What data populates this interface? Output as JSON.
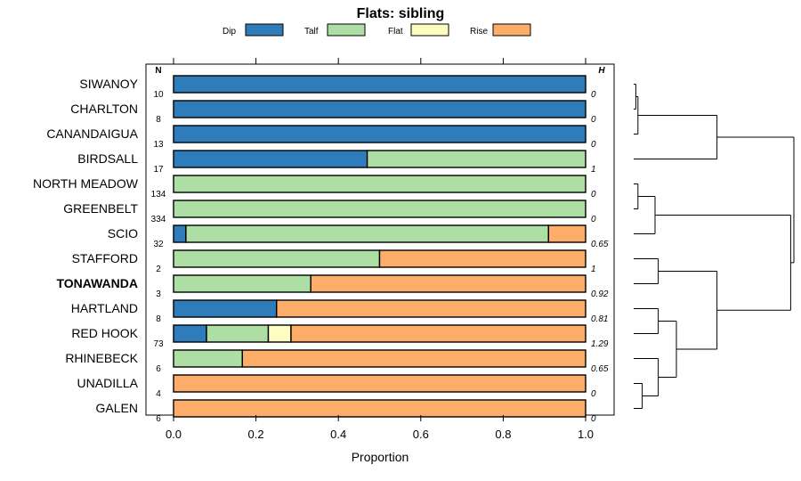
{
  "chart_data": {
    "type": "bar",
    "orientation": "horizontal",
    "stacked": true,
    "title": "Flats: sibling",
    "xlabel": "Proportion",
    "xlim": [
      0,
      1
    ],
    "x_ticks": [
      "0.0",
      "0.2",
      "0.4",
      "0.6",
      "0.8",
      "1.0"
    ],
    "n_header": "N",
    "h_header": "H",
    "highlighted_category": "TONAWANDA",
    "legend": [
      {
        "name": "Dip",
        "color": "#2e7dba"
      },
      {
        "name": "Talf",
        "color": "#addea3"
      },
      {
        "name": "Flat",
        "color": "#fdfdc1"
      },
      {
        "name": "Rise",
        "color": "#fdad6a"
      }
    ],
    "categories": [
      "SIWANOY",
      "CHARLTON",
      "CANANDAIGUA",
      "BIRDSALL",
      "NORTH MEADOW",
      "GREENBELT",
      "SCIO",
      "STAFFORD",
      "TONAWANDA",
      "HARTLAND",
      "RED HOOK",
      "RHINEBECK",
      "UNADILLA",
      "GALEN"
    ],
    "n_values": [
      "10",
      "8",
      "13",
      "17",
      "134",
      "334",
      "32",
      "2",
      "3",
      "8",
      "73",
      "6",
      "4",
      "6"
    ],
    "h_values": [
      "0",
      "0",
      "0",
      "1",
      "0",
      "0",
      "0.65",
      "1",
      "0.92",
      "0.81",
      "1.29",
      "0.65",
      "0",
      "0"
    ],
    "series": [
      {
        "name": "Dip",
        "values": [
          1.0,
          1.0,
          1.0,
          0.47,
          0.0,
          0.0,
          0.03,
          0.0,
          0.0,
          0.25,
          0.08,
          0.0,
          0.0,
          0.0
        ]
      },
      {
        "name": "Talf",
        "values": [
          0.0,
          0.0,
          0.0,
          0.53,
          1.0,
          1.0,
          0.88,
          0.5,
          0.333,
          0.0,
          0.15,
          0.167,
          0.0,
          0.0
        ]
      },
      {
        "name": "Flat",
        "values": [
          0.0,
          0.0,
          0.0,
          0.0,
          0.0,
          0.0,
          0.0,
          0.0,
          0.0,
          0.0,
          0.055,
          0.0,
          0.0,
          0.0
        ]
      },
      {
        "name": "Rise",
        "values": [
          0.0,
          0.0,
          0.0,
          0.0,
          0.0,
          0.0,
          0.09,
          0.5,
          0.667,
          0.75,
          0.715,
          0.833,
          1.0,
          1.0
        ]
      }
    ],
    "dendrogram": {
      "merges": [
        {
          "a": 0,
          "b": 1,
          "height": 0.02
        },
        {
          "a": 14,
          "b": 2,
          "height": 0.04
        },
        {
          "a": 4,
          "b": 5,
          "height": 0.04
        },
        {
          "a": 12,
          "b": 13,
          "height": 0.08
        },
        {
          "a": 16,
          "b": 6,
          "height": 0.2
        },
        {
          "a": 7,
          "b": 8,
          "height": 0.23
        },
        {
          "a": 9,
          "b": 10,
          "height": 0.23
        },
        {
          "a": 11,
          "b": 17,
          "height": 0.23
        },
        {
          "a": 20,
          "b": 21,
          "height": 0.4
        },
        {
          "a": 15,
          "b": 3,
          "height": 0.78
        },
        {
          "a": 19,
          "b": 22,
          "height": 0.78
        },
        {
          "a": 18,
          "b": 24,
          "height": 1.47
        },
        {
          "a": 23,
          "b": 25,
          "height": 1.5
        }
      ]
    }
  }
}
